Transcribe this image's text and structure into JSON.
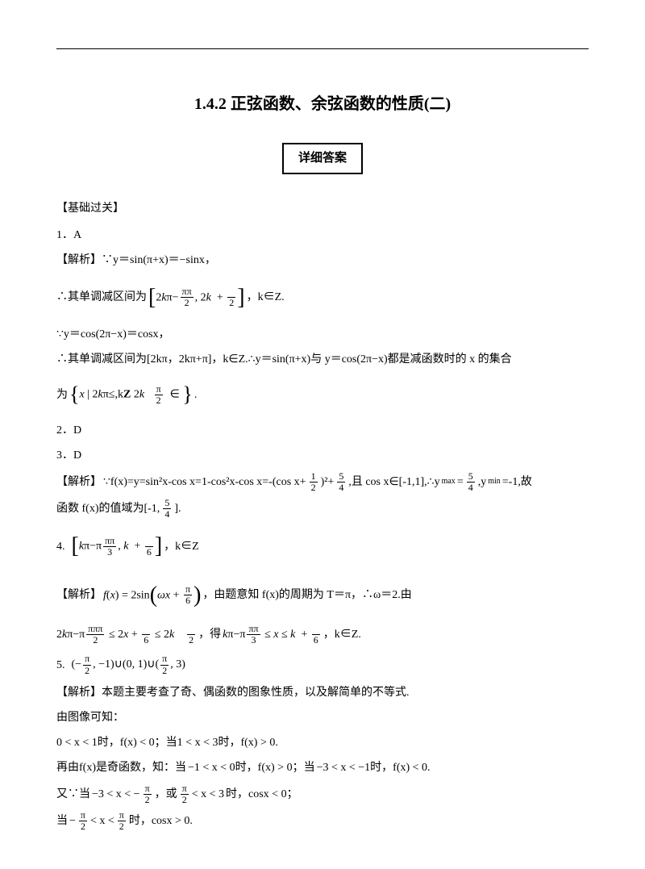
{
  "title": "1.4.2 正弦函数、余弦函数的性质(二)",
  "answer_box": "详细答案",
  "section": "【基础过关】",
  "q1": {
    "num": "1．A",
    "analysis_label": "【解析】",
    "line1": "∵y＝sin(π+x)＝−sinx，",
    "line2_prefix": "∴其单调减区间为",
    "line2_suffix": "，k∈Z.",
    "line3": "∵y＝cos(2π−x)＝cosx，",
    "line4": "∴其单调减区间为[2kπ，2kπ+π]，k∈Z.∴y＝sin(π+x)与 y＝cos(2π−x)都是减函数时的 x 的集合",
    "line5_prefix": "为"
  },
  "q2": {
    "num": "2．D"
  },
  "q3": {
    "num": "3．D",
    "analysis_label": "【解析】",
    "line1_a": "∵f(x)=y=sin²x-cos x=1-cos²x-cos x=-(cos x+",
    "line1_b": ")²+",
    "line1_c": ",且 cos x∈[-1,1],∴y",
    "line1_d": "=",
    "line1_e": ",y",
    "line1_f": "=-1,故",
    "line2_a": "函数 f(x)的值域为[-1,",
    "line2_b": "]."
  },
  "q4": {
    "num": "4.",
    "suffix": "，k∈Z",
    "analysis_label": "【解析】",
    "mid1": "，由题意知 f(x)的周期为 T＝π，∴ω＝2.由",
    "mid2": "，得",
    "mid3": "，k∈Z."
  },
  "q5": {
    "num": "5.",
    "interval": "(−π/2, −1)∪(0, 1)∪(π/2, 3)",
    "analysis": "【解析】本题主要考查了奇、偶函数的图象性质，以及解简单的不等式.",
    "line1": "由图像可知：",
    "line2": "0 < x < 1时，f(x) < 0；当1 < x < 3时，f(x) > 0.",
    "line3_a": "再由f(x)是奇函数，知：当",
    "line3_b": "−1 < x < 0时，f(x) > 0；当",
    "line3_c": "−3 < x < −1时，f(x) < 0.",
    "line4_a": "又∵当",
    "line4_b": "−3 < x < −",
    "line4_c": "，或",
    "line4_d": " < x < 3",
    "line4_e": "时，cosx < 0；",
    "line5_a": "当",
    "line5_b": " < x < ",
    "line5_c": "时，cosx > 0."
  }
}
